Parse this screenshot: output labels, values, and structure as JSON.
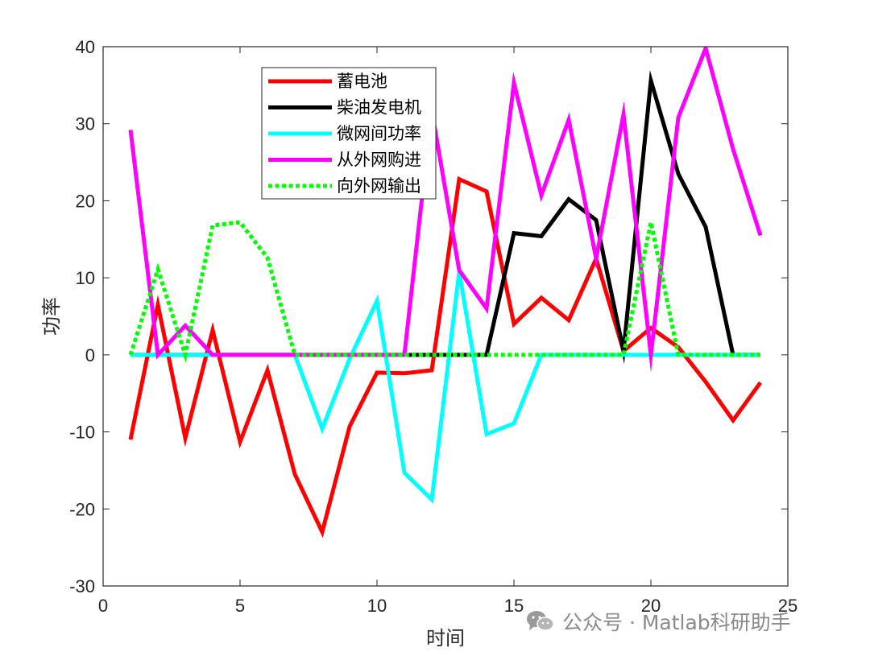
{
  "chart_data": {
    "type": "line",
    "xlabel": "时间",
    "ylabel": "功率",
    "xlim": [
      0,
      25
    ],
    "ylim": [
      -30,
      40
    ],
    "xticks": [
      0,
      5,
      10,
      15,
      20,
      25
    ],
    "yticks": [
      -30,
      -20,
      -10,
      0,
      10,
      20,
      30,
      40
    ],
    "x": [
      1,
      2,
      3,
      4,
      5,
      6,
      7,
      8,
      9,
      10,
      11,
      12,
      13,
      14,
      15,
      16,
      17,
      18,
      19,
      20,
      21,
      22,
      23,
      24
    ],
    "grid": false,
    "legend_position": "top-center",
    "series": [
      {
        "name": "蓄电池",
        "color": "#ff0000",
        "style": "solid",
        "values": [
          -11,
          6.5,
          -10.8,
          3.2,
          -11.3,
          -2,
          -15.5,
          -23,
          -9.3,
          -2.3,
          -2.4,
          -2,
          22.8,
          21.2,
          4,
          7.4,
          4.5,
          12.5,
          0.5,
          3.5,
          1,
          -3.5,
          -8.5,
          -3.6
        ]
      },
      {
        "name": "柴油发电机",
        "color": "#000000",
        "style": "solid",
        "values": [
          0,
          0,
          0,
          0,
          0,
          0,
          0,
          0,
          0,
          0,
          0,
          0,
          0,
          0,
          15.8,
          15.4,
          20.2,
          17.5,
          0.5,
          35.6,
          23.5,
          16.6,
          0,
          0
        ]
      },
      {
        "name": "微网间功率",
        "color": "#00ffff",
        "style": "solid",
        "values": [
          0,
          0,
          0,
          0,
          0,
          0,
          0,
          -9.6,
          -0.5,
          7,
          -15.3,
          -18.8,
          10.8,
          -10.3,
          -8.9,
          0,
          0,
          0,
          0,
          0,
          0,
          0,
          0,
          0
        ]
      },
      {
        "name": "从外网购进",
        "color": "#ff00ff",
        "style": "solid",
        "values": [
          29.2,
          0,
          3.8,
          0,
          0,
          0,
          0,
          0,
          0,
          0,
          0,
          31.7,
          11,
          6,
          35.3,
          20.7,
          30.5,
          12.5,
          31.2,
          0,
          30.8,
          39.8,
          26.7,
          15.5
        ]
      },
      {
        "name": "向外网输出",
        "color": "#00ff00",
        "style": "dotted",
        "values": [
          0,
          11.1,
          0,
          16.8,
          17.2,
          12.6,
          0,
          0,
          0,
          0,
          0,
          0,
          0,
          0,
          0,
          0,
          0,
          0,
          0,
          17.2,
          0,
          0,
          0,
          0
        ]
      }
    ]
  },
  "watermark": {
    "text": "公众号 · Matlab科研助手",
    "icon": "wechat-icon"
  }
}
